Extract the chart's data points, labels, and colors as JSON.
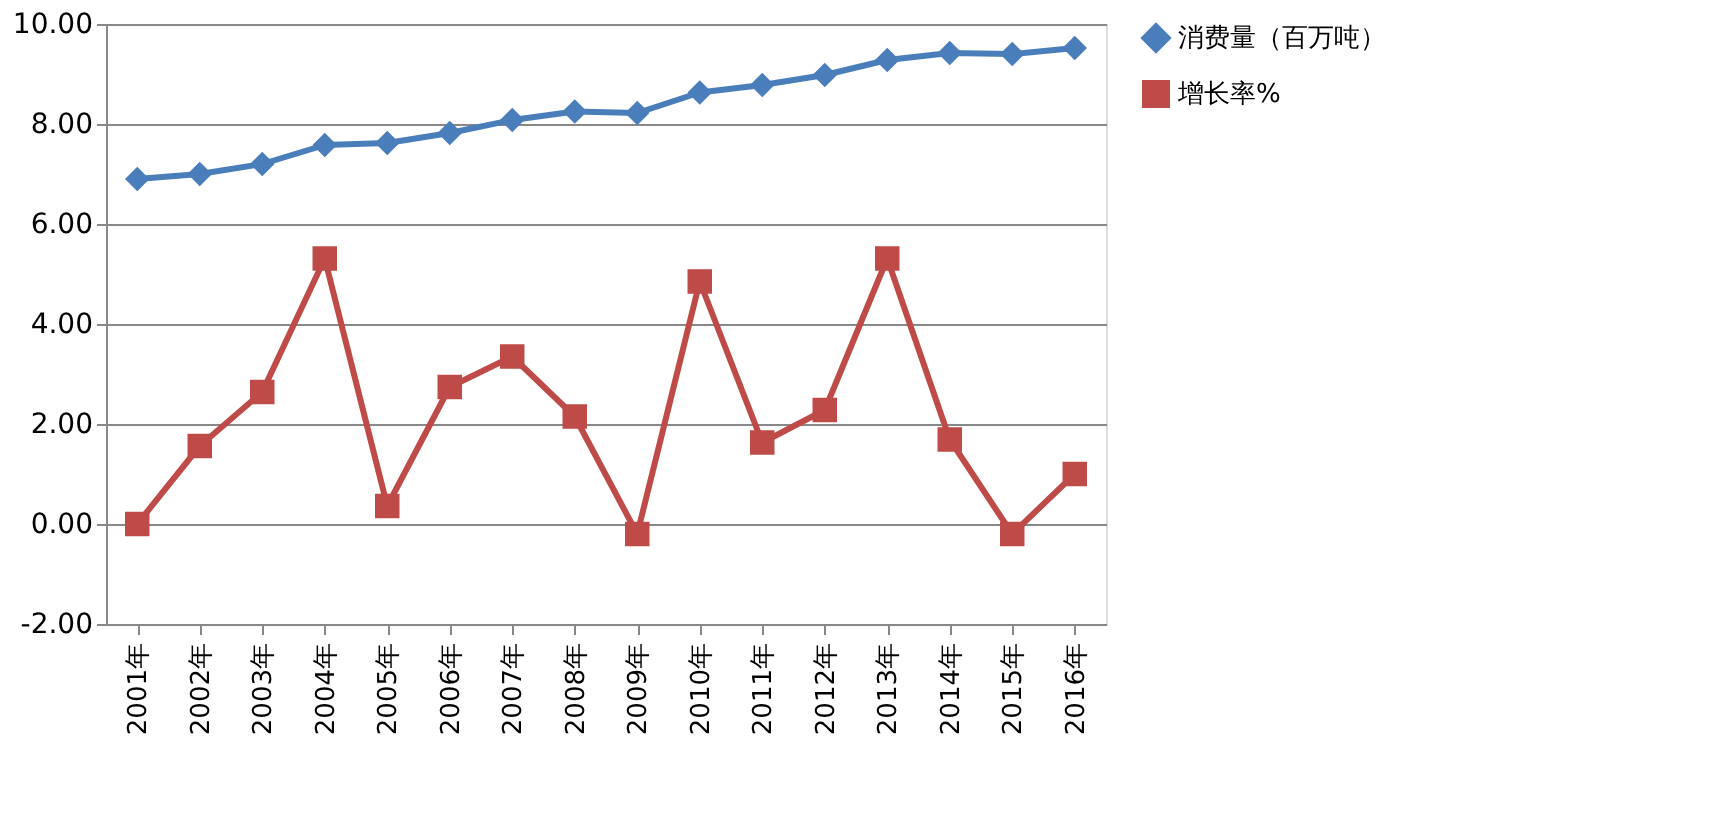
{
  "chart_data": {
    "type": "line",
    "categories": [
      "2001年",
      "2002年",
      "2003年",
      "2004年",
      "2005年",
      "2006年",
      "2007年",
      "2008年",
      "2009年",
      "2010年",
      "2011年",
      "2012年",
      "2013年",
      "2014年",
      "2015年",
      "2016年"
    ],
    "series": [
      {
        "name": "消费量（百万吨）",
        "color": "#4a7ebb",
        "marker": "diamond",
        "values": [
          6.9,
          7.0,
          7.2,
          7.58,
          7.62,
          7.82,
          8.08,
          8.25,
          8.22,
          8.63,
          8.78,
          8.98,
          9.28,
          9.42,
          9.4,
          9.52
        ]
      },
      {
        "name": "增长率%",
        "color": "#be4b48",
        "marker": "square",
        "values": [
          0.0,
          1.56,
          2.64,
          5.31,
          0.36,
          2.74,
          3.35,
          2.15,
          -0.2,
          4.85,
          1.63,
          2.28,
          5.31,
          1.69,
          -0.2,
          1.0
        ]
      }
    ],
    "ylim": [
      -2,
      10
    ],
    "yticks": [
      {
        "value": -2,
        "label": "-2.00"
      },
      {
        "value": 0,
        "label": "0.00"
      },
      {
        "value": 2,
        "label": "2.00"
      },
      {
        "value": 4,
        "label": "4.00"
      },
      {
        "value": 6,
        "label": "6.00"
      },
      {
        "value": 8,
        "label": "8.00"
      },
      {
        "value": 10,
        "label": "10.00"
      }
    ],
    "grid": "y",
    "legend": "right",
    "line_style": "solid"
  }
}
